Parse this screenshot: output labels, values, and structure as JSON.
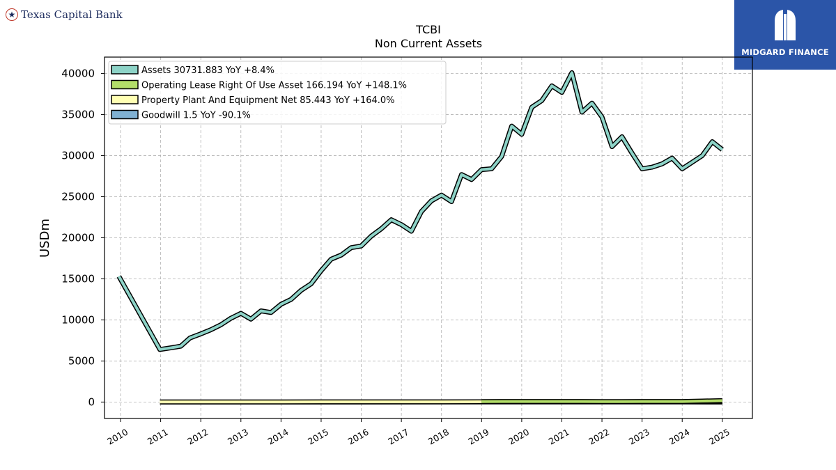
{
  "brand": {
    "name": "Texas Capital Bank",
    "icon": "star-icon"
  },
  "logo": {
    "name": "MIDGARD FINANCE",
    "background": "#2b55a8"
  },
  "chart_data": {
    "type": "line",
    "title": "TCBI",
    "subtitle": "Non Current  Assets",
    "ylabel": "USDm",
    "xlabel": "",
    "xlim": [
      2009.6,
      2025.75
    ],
    "ylim": [
      -2000,
      42000
    ],
    "yticks": [
      0,
      5000,
      10000,
      15000,
      20000,
      25000,
      30000,
      35000,
      40000
    ],
    "xticks": [
      "2010",
      "2011",
      "2012",
      "2013",
      "2014",
      "2015",
      "2016",
      "2017",
      "2018",
      "2019",
      "2020",
      "2021",
      "2022",
      "2023",
      "2024",
      "2025"
    ],
    "grid": true,
    "legend_position": "top-left",
    "series": [
      {
        "name": "Assets",
        "legend": "Assets  30731.883 YoY +8.4%",
        "color": "#8dd3c7",
        "x": [
          2009.96,
          2010.98,
          2011.25,
          2011.5,
          2011.73,
          2012.0,
          2012.25,
          2012.5,
          2012.75,
          2013.0,
          2013.25,
          2013.5,
          2013.75,
          2014.0,
          2014.25,
          2014.5,
          2014.75,
          2015.0,
          2015.25,
          2015.5,
          2015.75,
          2016.0,
          2016.25,
          2016.5,
          2016.75,
          2017.0,
          2017.25,
          2017.5,
          2017.75,
          2018.0,
          2018.25,
          2018.5,
          2018.75,
          2019.0,
          2019.25,
          2019.5,
          2019.75,
          2020.0,
          2020.25,
          2020.5,
          2020.75,
          2021.0,
          2021.25,
          2021.5,
          2021.75,
          2022.0,
          2022.25,
          2022.5,
          2022.75,
          2023.0,
          2023.25,
          2023.5,
          2023.75,
          2024.0,
          2024.25,
          2024.5,
          2024.75,
          2025.0
        ],
        "values": [
          15300,
          6400,
          6600,
          6800,
          7800,
          8300,
          8800,
          9400,
          10200,
          10800,
          10100,
          11100,
          10900,
          11900,
          12500,
          13600,
          14400,
          16000,
          17400,
          17900,
          18800,
          19000,
          20200,
          21100,
          22200,
          21600,
          20800,
          23200,
          24500,
          25200,
          24400,
          27700,
          27100,
          28300,
          28400,
          29900,
          33600,
          32600,
          35900,
          36700,
          38500,
          37700,
          40100,
          35300,
          36400,
          34700,
          31100,
          32300,
          30300,
          28400,
          28600,
          29000,
          29700,
          28400,
          29200,
          30000,
          31700,
          30732
        ]
      },
      {
        "name": "Operating Lease Right Of Use Asset",
        "legend": "Operating Lease Right Of Use Asset  166.194 YoY +148.1%",
        "color": "#b3de69",
        "x": [
          2019.0,
          2019.5,
          2020.0,
          2020.5,
          2021.0,
          2021.5,
          2022.0,
          2022.5,
          2023.0,
          2023.5,
          2024.0,
          2024.5,
          2025.0
        ],
        "values": [
          60,
          70,
          70,
          68,
          67,
          65,
          64,
          64,
          66,
          67,
          67,
          120,
          166.194
        ]
      },
      {
        "name": "Property Plant And Equipment Net",
        "legend": "Property Plant And Equipment Net  85.443 YoY +164.0%",
        "color": "#ffffb3",
        "x": [
          2010.98,
          2012.0,
          2013.0,
          2014.0,
          2015.0,
          2016.0,
          2017.0,
          2018.0,
          2019.0,
          2020.0,
          2021.0,
          2022.0,
          2023.0,
          2024.0,
          2024.5,
          2025.0
        ],
        "values": [
          15,
          16,
          18,
          20,
          23,
          26,
          29,
          30,
          31,
          32,
          32,
          32,
          32,
          32,
          60,
          85.443
        ]
      },
      {
        "name": "Goodwill",
        "legend": "Goodwill  1.5 YoY -90.1%",
        "color": "#80b1d3",
        "x": [
          2010.98,
          2013.5,
          2019.0,
          2024.0,
          2025.0
        ],
        "values": [
          2,
          1.5,
          15,
          15,
          1.5
        ]
      }
    ]
  }
}
